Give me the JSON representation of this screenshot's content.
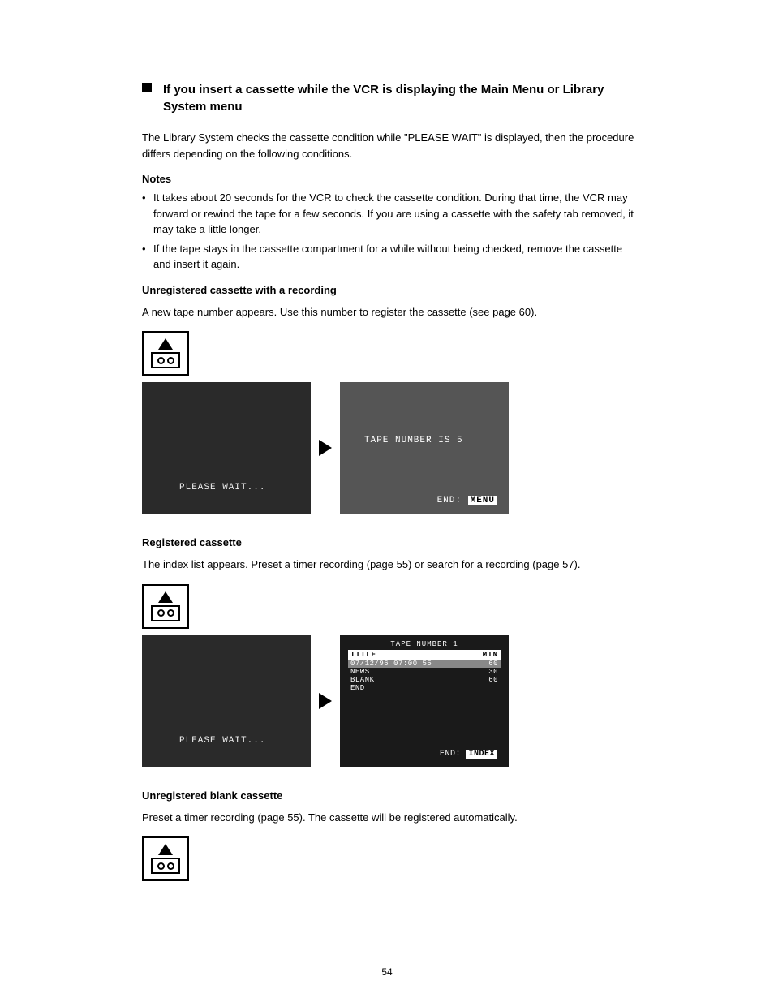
{
  "section": {
    "title": "If you insert a cassette while the VCR is displaying the Main Menu or Library System menu"
  },
  "para1": "The Library System checks the cassette condition while \"PLEASE WAIT\" is displayed, then the procedure differs depending on the following conditions.",
  "notesTitle": "Notes",
  "notes": [
    "It takes about 20 seconds for the VCR to check the cassette condition. During that time, the VCR may forward or rewind the tape for a few seconds. If you are using a cassette with the safety tab removed, it may take a little longer.",
    "If the tape stays in the cassette compartment for a while without being checked, remove the cassette and insert it again."
  ],
  "case1": {
    "title": "Unregistered cassette with a recording",
    "desc": "A new tape number appears. Use this number to register the cassette (see page 60)."
  },
  "screen1a": {
    "text": "PLEASE WAIT..."
  },
  "screen1b": {
    "tapeNum": "TAPE NUMBER IS   5",
    "endLabel": "END:",
    "endBtn": "MENU"
  },
  "case2": {
    "title": "Registered cassette",
    "desc": "The index list appears. Preset a timer recording (page 55) or search for a recording (page 57)."
  },
  "screen2a": {
    "text": "PLEASE WAIT..."
  },
  "screen2b": {
    "header": "TAPE NUMBER   1",
    "titleCol": "TITLE",
    "minCol": "MIN",
    "rows": [
      {
        "title": "07/12/96 07:00  55",
        "min": "60",
        "hl": true
      },
      {
        "title": "NEWS",
        "min": "30",
        "hl": false
      },
      {
        "title": "BLANK",
        "min": "60",
        "hl": false
      },
      {
        "title": "END",
        "min": "",
        "hl": false
      }
    ],
    "endLabel": "END:",
    "endBtn": "INDEX"
  },
  "case3": {
    "title": "Unregistered blank cassette",
    "desc": "Preset a timer recording (page 55). The cassette will be registered automatically."
  },
  "pageNumber": "54"
}
